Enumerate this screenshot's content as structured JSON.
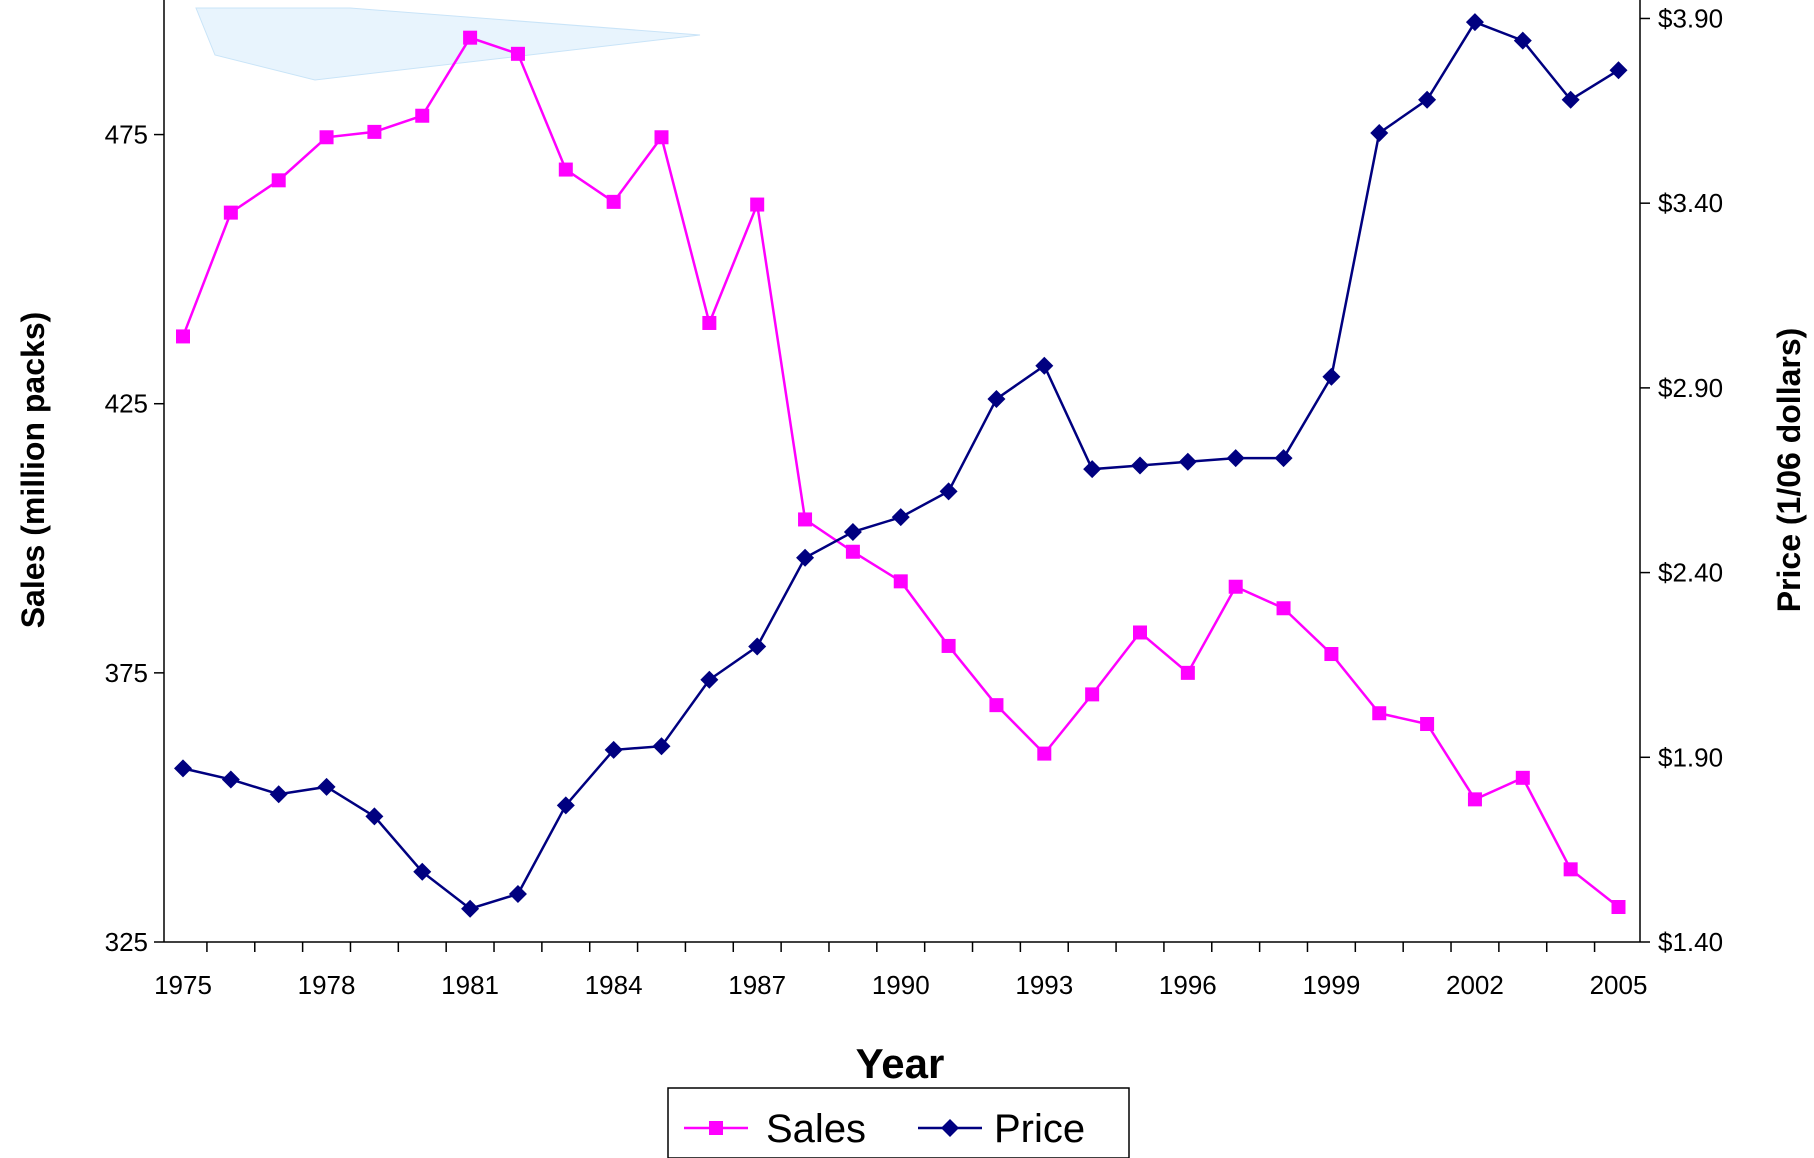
{
  "chart_data": {
    "type": "line",
    "x_title": "Year",
    "y_left_title": "Sales (million packs)",
    "y_right_title": "Price (1/06 dollars)",
    "x_tick_labels": [
      "1975",
      "1978",
      "1981",
      "1984",
      "1987",
      "1990",
      "1993",
      "1996",
      "1999",
      "2002",
      "2005"
    ],
    "x_range": [
      1975,
      2005
    ],
    "y_left_range": [
      325,
      500
    ],
    "y_left_ticks": [
      "325",
      "375",
      "425",
      "475"
    ],
    "y_right_range": [
      1.4,
      3.95
    ],
    "y_right_ticks": [
      "$1.40",
      "$1.90",
      "$2.40",
      "$2.90",
      "$3.40",
      "$3.90"
    ],
    "grid": false,
    "legend_position": "bottom-center",
    "x": [
      1975,
      1976,
      1977,
      1978,
      1979,
      1980,
      1981,
      1982,
      1983,
      1984,
      1985,
      1986,
      1987,
      1988,
      1989,
      1990,
      1991,
      1992,
      1993,
      1994,
      1995,
      1996,
      1997,
      1998,
      1999,
      2000,
      2001,
      2002,
      2003,
      2004,
      2005
    ],
    "series": [
      {
        "name": "Sales",
        "axis": "left",
        "color": "#ff00ff",
        "marker": "square",
        "values": [
          437.5,
          460.5,
          466.5,
          474.5,
          475.5,
          478.5,
          493,
          490,
          468.5,
          462.5,
          474.5,
          440,
          462,
          403.5,
          397.5,
          392,
          380,
          369,
          360,
          371,
          382.5,
          375,
          391,
          387,
          378.5,
          367.5,
          365.5,
          351.5,
          355.5,
          338.5,
          331.5
        ]
      },
      {
        "name": "Price",
        "axis": "right",
        "color": "#000080",
        "marker": "diamond",
        "values": [
          1.87,
          1.84,
          1.8,
          1.82,
          1.74,
          1.59,
          1.49,
          1.53,
          1.77,
          1.92,
          1.93,
          2.11,
          2.2,
          2.44,
          2.51,
          2.55,
          2.62,
          2.87,
          2.96,
          2.68,
          2.69,
          2.7,
          2.71,
          2.71,
          2.93,
          3.59,
          3.68,
          3.89,
          3.84,
          3.68,
          3.76
        ]
      }
    ]
  },
  "legend": {
    "sales_label": "Sales",
    "price_label": "Price"
  }
}
